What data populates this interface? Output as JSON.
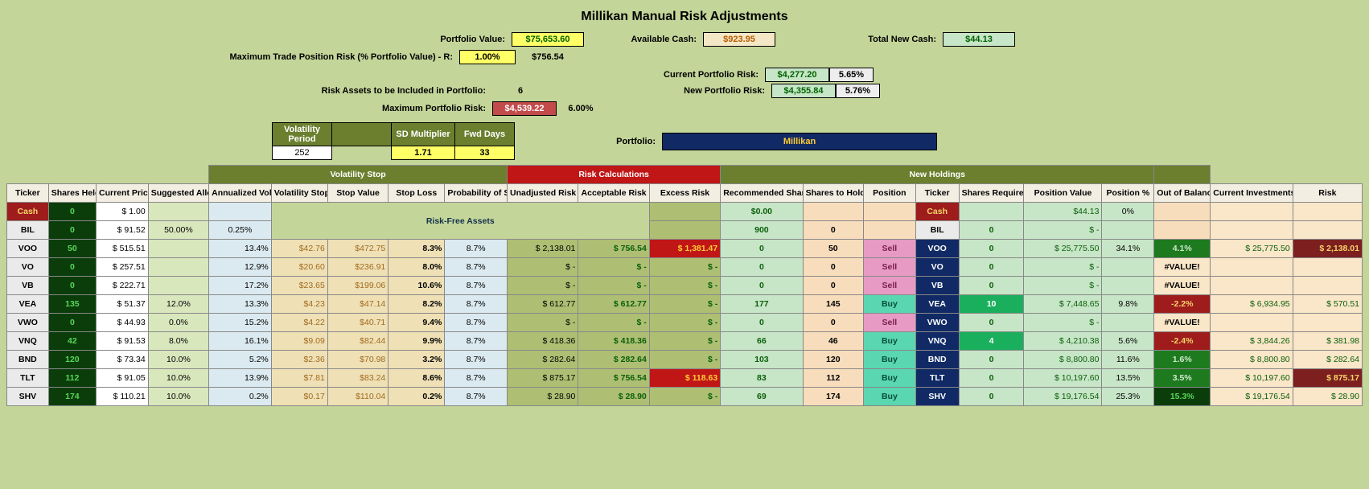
{
  "title": "Millikan Manual Risk Adjustments",
  "summary": {
    "portfolio_value_label": "Portfolio Value:",
    "portfolio_value": "$75,653.60",
    "available_cash_label": "Available Cash:",
    "available_cash": "$923.95",
    "total_new_cash_label": "Total New Cash:",
    "total_new_cash": "$44.13",
    "max_trade_label": "Maximum Trade Position Risk (% Portfolio Value) - R:",
    "max_trade_pct": "1.00%",
    "max_trade_value": "$756.54",
    "risk_assets_label": "Risk Assets to be Included in Portfolio:",
    "risk_assets_count": "6",
    "max_portfolio_risk_label": "Maximum Portfolio Risk:",
    "max_portfolio_risk_val": "$4,539.22",
    "max_portfolio_risk_pct": "6.00%",
    "current_portfolio_risk_label": "Current Portfolio Risk:",
    "current_portfolio_risk_val": "$4,277.20",
    "current_portfolio_risk_pct": "5.65%",
    "new_portfolio_risk_label": "New Portfolio Risk:",
    "new_portfolio_risk_val": "$4,355.84",
    "new_portfolio_risk_pct": "5.76%",
    "portfolio_label": "Portfolio:",
    "portfolio_name": "Millikan"
  },
  "params": {
    "vol_period_hdr": "Volatility Period",
    "vol_period": "252",
    "sd_mult_hdr": "SD Multiplier",
    "sd_mult": "1.71",
    "fwd_days_hdr": "Fwd Days",
    "fwd_days": "33"
  },
  "sections": {
    "vol_stop": "Volatility Stop",
    "risk_calc": "Risk Calculations",
    "new_holdings": "New Holdings"
  },
  "cols": {
    "ticker": "Ticker",
    "shares_held": "Shares Held",
    "cur_price": "Current Price",
    "sug_alloc": "Suggested Allocation",
    "ann_vol": "Annualized Volatility",
    "vol_stop": "Volatility Stop",
    "stop_val": "Stop Value",
    "stop_loss": "Stop Loss",
    "prob_stop": "Probability of Stop",
    "unadj_risk": "Unadjusted Risk",
    "acc_risk": "Acceptable Risk",
    "excess_risk": "Excess Risk",
    "rec_shares": "Recommended Shares from Auto",
    "shares_hold": "Shares to Hold",
    "position": "Position",
    "ticker2": "Ticker",
    "shares_req": "Shares Required",
    "pos_val": "Position Value",
    "pos_pct": "Position %",
    "oob": "Out of Balance",
    "cur_inv": "Current Investments",
    "risk": "Risk"
  },
  "riskfree_label": "Risk-Free Assets",
  "rows_riskfree": [
    {
      "ticker": "Cash",
      "ticker_cls": "c-cashTkr",
      "shares": "0",
      "price": "$    1.00",
      "alloc": "",
      "ann_vol": "",
      "rec": "$0.00",
      "hold": "",
      "pos": "",
      "tkr2": "Cash",
      "tkr2_cls": "c-cashTkr",
      "req": "",
      "pos_val": "$44.13",
      "pos_pct": "0%"
    },
    {
      "ticker": "BIL",
      "ticker_cls": "c-ticker",
      "shares": "0",
      "price": "$   91.52",
      "alloc": "50.00%",
      "ann_vol": "0.25%",
      "rec": "900",
      "hold": "0",
      "pos": "",
      "tkr2": "BIL",
      "tkr2_cls": "c-ticker",
      "req": "0",
      "pos_val": "$        -",
      "pos_pct": ""
    }
  ],
  "rows": [
    {
      "ticker": "VOO",
      "shares": "50",
      "price": "$  515.51",
      "alloc": "",
      "ann_vol": "13.4%",
      "vstop": "$42.76",
      "sval": "$472.75",
      "sloss": "8.3%",
      "prob": "8.7%",
      "unadj": "$   2,138.01",
      "acc": "$     756.54",
      "excess": "$ 1,381.47",
      "excess_cls": "c-redCell",
      "rec": "0",
      "hold": "50",
      "pos": "Sell",
      "pos_cls": "c-sell",
      "tkr2": "VOO",
      "req": "0",
      "req_cls": "c-mint",
      "pval": "$ 25,775.50",
      "ppct": "34.1%",
      "oob": "4.1%",
      "oob_cls": "c-oobGreen",
      "cinv": "$ 25,775.50",
      "risk": "$  2,138.01",
      "risk_cls": "c-darkredR"
    },
    {
      "ticker": "VO",
      "shares": "0",
      "price": "$  257.51",
      "alloc": "",
      "ann_vol": "12.9%",
      "vstop": "$20.60",
      "sval": "$236.91",
      "sloss": "8.0%",
      "prob": "8.7%",
      "unadj": "$            -",
      "acc": "$            -",
      "excess": "$            -",
      "excess_cls": "c-oliveCellG",
      "rec": "0",
      "hold": "0",
      "pos": "Sell",
      "pos_cls": "c-sell",
      "tkr2": "VO",
      "req": "0",
      "req_cls": "c-mint",
      "pval": "$            -",
      "ppct": "",
      "oob": "#VALUE!",
      "oob_cls": "c-valerr",
      "cinv": "",
      "risk": "",
      "risk_cls": "c-peachR"
    },
    {
      "ticker": "VB",
      "shares": "0",
      "price": "$  222.71",
      "alloc": "",
      "ann_vol": "17.2%",
      "vstop": "$23.65",
      "sval": "$199.06",
      "sloss": "10.6%",
      "prob": "8.7%",
      "unadj": "$            -",
      "acc": "$            -",
      "excess": "$            -",
      "excess_cls": "c-oliveCellG",
      "rec": "0",
      "hold": "0",
      "pos": "Sell",
      "pos_cls": "c-sell",
      "tkr2": "VB",
      "req": "0",
      "req_cls": "c-mint",
      "pval": "$            -",
      "ppct": "",
      "oob": "#VALUE!",
      "oob_cls": "c-valerr",
      "cinv": "",
      "risk": "",
      "risk_cls": "c-peachR"
    },
    {
      "ticker": "VEA",
      "shares": "135",
      "price": "$    51.37",
      "alloc": "12.0%",
      "ann_vol": "13.3%",
      "vstop": "$4.23",
      "sval": "$47.14",
      "sloss": "8.2%",
      "prob": "8.7%",
      "unadj": "$      612.77",
      "acc": "$     612.77",
      "excess": "$            -",
      "excess_cls": "c-oliveCellG",
      "rec": "177",
      "hold": "145",
      "pos": "Buy",
      "pos_cls": "c-buy",
      "tkr2": "VEA",
      "req": "10",
      "req_cls": "c-emerald",
      "pval": "$   7,448.65",
      "ppct": "9.8%",
      "oob": "-2.2%",
      "oob_cls": "c-oobRed",
      "cinv": "$   6,934.95",
      "risk": "$     570.51",
      "risk_cls": "c-peachG"
    },
    {
      "ticker": "VWO",
      "shares": "0",
      "price": "$    44.93",
      "alloc": "0.0%",
      "ann_vol": "15.2%",
      "vstop": "$4.22",
      "sval": "$40.71",
      "sloss": "9.4%",
      "prob": "8.7%",
      "unadj": "$            -",
      "acc": "$            -",
      "excess": "$            -",
      "excess_cls": "c-oliveCellG",
      "rec": "0",
      "hold": "0",
      "pos": "Sell",
      "pos_cls": "c-sell",
      "tkr2": "VWO",
      "req": "0",
      "req_cls": "c-mint",
      "pval": "$            -",
      "ppct": "",
      "oob": "#VALUE!",
      "oob_cls": "c-valerr",
      "cinv": "",
      "risk": "",
      "risk_cls": "c-peachR"
    },
    {
      "ticker": "VNQ",
      "shares": "42",
      "price": "$    91.53",
      "alloc": "8.0%",
      "ann_vol": "16.1%",
      "vstop": "$9.09",
      "sval": "$82.44",
      "sloss": "9.9%",
      "prob": "8.7%",
      "unadj": "$      418.36",
      "acc": "$     418.36",
      "excess": "$            -",
      "excess_cls": "c-oliveCellG",
      "rec": "66",
      "hold": "46",
      "pos": "Buy",
      "pos_cls": "c-buy",
      "tkr2": "VNQ",
      "req": "4",
      "req_cls": "c-emerald",
      "pval": "$   4,210.38",
      "ppct": "5.6%",
      "oob": "-2.4%",
      "oob_cls": "c-oobRed",
      "cinv": "$   3,844.26",
      "risk": "$     381.98",
      "risk_cls": "c-peachG"
    },
    {
      "ticker": "BND",
      "shares": "120",
      "price": "$    73.34",
      "alloc": "10.0%",
      "ann_vol": "5.2%",
      "vstop": "$2.36",
      "sval": "$70.98",
      "sloss": "3.2%",
      "prob": "8.7%",
      "unadj": "$      282.64",
      "acc": "$     282.64",
      "excess": "$            -",
      "excess_cls": "c-oliveCellG",
      "rec": "103",
      "hold": "120",
      "pos": "Buy",
      "pos_cls": "c-buy",
      "tkr2": "BND",
      "req": "0",
      "req_cls": "c-mint",
      "pval": "$   8,800.80",
      "ppct": "11.6%",
      "oob": "1.6%",
      "oob_cls": "c-oobGreen",
      "cinv": "$   8,800.80",
      "risk": "$     282.64",
      "risk_cls": "c-peachG"
    },
    {
      "ticker": "TLT",
      "shares": "112",
      "price": "$    91.05",
      "alloc": "10.0%",
      "ann_vol": "13.9%",
      "vstop": "$7.81",
      "sval": "$83.24",
      "sloss": "8.6%",
      "prob": "8.7%",
      "unadj": "$      875.17",
      "acc": "$     756.54",
      "excess": "$    118.63",
      "excess_cls": "c-redCell",
      "rec": "83",
      "hold": "112",
      "pos": "Buy",
      "pos_cls": "c-buy",
      "tkr2": "TLT",
      "req": "0",
      "req_cls": "c-mint",
      "pval": "$ 10,197.60",
      "ppct": "13.5%",
      "oob": "3.5%",
      "oob_cls": "c-oobGreen",
      "cinv": "$ 10,197.60",
      "risk": "$     875.17",
      "risk_cls": "c-darkredR"
    },
    {
      "ticker": "SHV",
      "shares": "174",
      "price": "$  110.21",
      "alloc": "10.0%",
      "ann_vol": "0.2%",
      "vstop": "$0.17",
      "sval": "$110.04",
      "sloss": "0.2%",
      "prob": "8.7%",
      "unadj": "$        28.90",
      "acc": "$       28.90",
      "excess": "$            -",
      "excess_cls": "c-oliveCellG",
      "rec": "69",
      "hold": "174",
      "pos": "Buy",
      "pos_cls": "c-buy",
      "tkr2": "SHV",
      "req": "0",
      "req_cls": "c-mint",
      "pval": "$ 19,176.54",
      "ppct": "25.3%",
      "oob": "15.3%",
      "oob_cls": "c-oobDkGrn",
      "cinv": "$ 19,176.54",
      "risk": "$       28.90",
      "risk_cls": "c-peachG"
    }
  ]
}
